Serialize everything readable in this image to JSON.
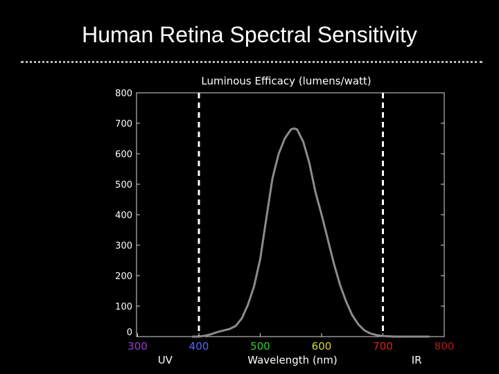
{
  "slide": {
    "title": "Human Retina Spectral Sensitivity"
  },
  "colors": {
    "background": "#000000",
    "axes": "#dcdcdc",
    "curve": "#8c8c8c",
    "boundary_lines": "#ffffff",
    "tick_300": "#9b3bd6",
    "tick_400": "#5a66ff",
    "tick_500": "#2fcc2f",
    "tick_600": "#d8d82a",
    "tick_700": "#e0201a",
    "tick_800": "#b21a12"
  },
  "chart_data": {
    "type": "line",
    "title": "Luminous Efficacy (lumens/watt)",
    "xlabel": "Wavelength (nm)",
    "ylabel": "",
    "xlim": [
      300,
      800
    ],
    "ylim": [
      0,
      800
    ],
    "xticks": [
      {
        "value": 300,
        "label": "300",
        "color": "#9b3bd6"
      },
      {
        "value": 400,
        "label": "400",
        "color": "#5a66ff"
      },
      {
        "value": 500,
        "label": "500",
        "color": "#2fcc2f"
      },
      {
        "value": 600,
        "label": "600",
        "color": "#d8d82a"
      },
      {
        "value": 700,
        "label": "700",
        "color": "#e0201a"
      },
      {
        "value": 800,
        "label": "800",
        "color": "#b21a12"
      }
    ],
    "yticks": [
      0,
      100,
      200,
      300,
      400,
      500,
      600,
      700,
      800
    ],
    "region_labels": [
      {
        "text": "UV",
        "x": 345
      },
      {
        "text": "IR",
        "x": 755
      }
    ],
    "vertical_lines": [
      400,
      700
    ],
    "grid": false,
    "series": [
      {
        "x": [
          390,
          400,
          410,
          420,
          430,
          440,
          450,
          460,
          470,
          480,
          490,
          500,
          510,
          520,
          530,
          540,
          550,
          555,
          560,
          570,
          580,
          590,
          600,
          610,
          620,
          630,
          640,
          650,
          660,
          670,
          680,
          690,
          700,
          710,
          720,
          730,
          740,
          750,
          760,
          775
        ],
        "values": [
          0,
          0,
          3,
          8,
          15,
          20,
          25,
          35,
          60,
          105,
          165,
          255,
          390,
          520,
          600,
          650,
          680,
          683,
          680,
          640,
          570,
          475,
          400,
          320,
          240,
          170,
          115,
          70,
          40,
          20,
          10,
          5,
          2,
          1,
          0,
          0,
          0,
          0,
          0,
          0
        ]
      }
    ]
  }
}
